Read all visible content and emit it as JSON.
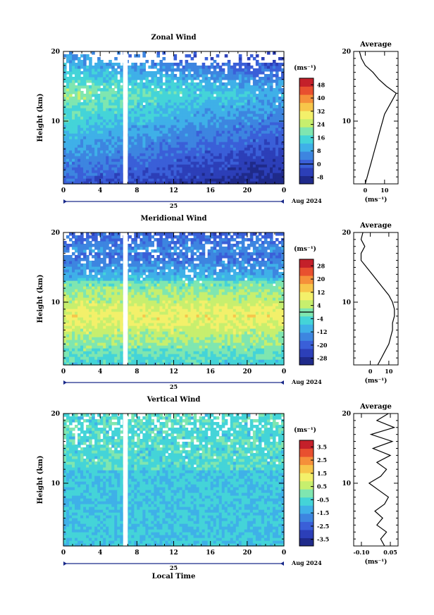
{
  "chart_data": [
    {
      "type": "heatmap",
      "title": "Zonal Wind",
      "xlabel": "",
      "ylabel": "Height (km)",
      "x_ticks": [
        "0",
        "4",
        "8",
        "12",
        "16",
        "20",
        "0"
      ],
      "xlim": [
        0,
        24
      ],
      "y_ticks": [
        "10",
        "20"
      ],
      "ylim": [
        1,
        20
      ],
      "date_day": "25",
      "date_label": "Aug 2024",
      "colorbar": {
        "unit": "(ms⁻¹)",
        "ticks": [
          "48",
          "40",
          "32",
          "24",
          "16",
          "8",
          "0",
          "-8"
        ],
        "range": [
          -12,
          52
        ],
        "contour_level": 0
      },
      "missing_time_range": [
        6.5,
        7.0
      ],
      "profile": {
        "title": "Average",
        "xlabel": "(ms⁻¹)",
        "x_ticks": [
          "0",
          "10"
        ],
        "xlim": [
          -6,
          17
        ],
        "y_ticks": [
          "10",
          "20"
        ],
        "heights": [
          1,
          2,
          3,
          4,
          5,
          6,
          7,
          8,
          9,
          10,
          11,
          12,
          13,
          14,
          15,
          16,
          17,
          18,
          19,
          20
        ],
        "values": [
          0,
          1,
          2,
          3,
          4,
          5,
          6,
          7,
          8,
          9,
          10,
          12,
          14,
          16,
          11,
          7,
          4,
          0,
          -2,
          -3
        ]
      }
    },
    {
      "type": "heatmap",
      "title": "Meridional Wind",
      "xlabel": "",
      "ylabel": "Height (km)",
      "x_ticks": [
        "0",
        "4",
        "8",
        "12",
        "16",
        "20",
        "0"
      ],
      "xlim": [
        0,
        24
      ],
      "y_ticks": [
        "10",
        "20"
      ],
      "ylim": [
        1,
        20
      ],
      "date_day": "25",
      "date_label": "Aug 2024",
      "colorbar": {
        "unit": "(ms⁻¹)",
        "ticks": [
          "28",
          "20",
          "12",
          "4",
          "-4",
          "-12",
          "-20",
          "-28"
        ],
        "range": [
          -32,
          32
        ],
        "contour_level": 0
      },
      "missing_time_range": [
        6.5,
        7.0
      ],
      "profile": {
        "title": "Average",
        "xlabel": "(ms⁻¹)",
        "x_ticks": [
          "0",
          "10"
        ],
        "xlim": [
          -9,
          15
        ],
        "y_ticks": [
          "10",
          "20"
        ],
        "heights": [
          1,
          2,
          3,
          4,
          5,
          6,
          7,
          8,
          9,
          10,
          11,
          12,
          13,
          14,
          15,
          16,
          17,
          18,
          19,
          20
        ],
        "values": [
          4,
          6,
          8,
          10,
          11,
          12,
          12,
          13,
          13,
          12,
          10,
          7,
          4,
          1,
          -2,
          -5,
          -5,
          -3,
          -5,
          -4
        ]
      }
    },
    {
      "type": "heatmap",
      "title": "Vertical Wind",
      "xlabel": "Local Time",
      "ylabel": "Height (km)",
      "x_ticks": [
        "0",
        "4",
        "8",
        "12",
        "16",
        "20",
        "0"
      ],
      "xlim": [
        0,
        24
      ],
      "y_ticks": [
        "10",
        "20"
      ],
      "ylim": [
        1,
        20
      ],
      "date_day": "25",
      "date_label": "Aug 2024",
      "colorbar": {
        "unit": "(ms⁻¹)",
        "ticks": [
          "3.5",
          "2.5",
          "1.5",
          "0.5",
          "-0.5",
          "-1.5",
          "-2.5",
          "-3.5"
        ],
        "range": [
          -4,
          4
        ],
        "contour_level": null
      },
      "missing_time_range": [
        6.5,
        7.0
      ],
      "profile": {
        "title": "Average",
        "xlabel": "(ms⁻¹)",
        "x_ticks": [
          "-0.10",
          "0.05"
        ],
        "xlim": [
          -0.14,
          0.09
        ],
        "y_ticks": [
          "10",
          "20"
        ],
        "heights": [
          1,
          2,
          3,
          4,
          5,
          6,
          7,
          8,
          9,
          10,
          11,
          12,
          13,
          14,
          15,
          16,
          17,
          18,
          19,
          20
        ],
        "values": [
          0.02,
          0.0,
          0.03,
          -0.02,
          0.01,
          -0.03,
          0.02,
          0.04,
          -0.01,
          -0.06,
          0.0,
          0.03,
          -0.02,
          0.05,
          -0.04,
          0.06,
          -0.05,
          0.07,
          -0.02,
          0.04
        ]
      }
    }
  ],
  "colors": {
    "scale": [
      "#1f2a8a",
      "#2c3fb8",
      "#3a5fd8",
      "#3d85e0",
      "#3fb0e8",
      "#44d4d8",
      "#7fe6b0",
      "#c7ef6e",
      "#f3f06a",
      "#f7c64a",
      "#f5903a",
      "#e8502f",
      "#c4202a"
    ],
    "missing": "#ffffff"
  }
}
